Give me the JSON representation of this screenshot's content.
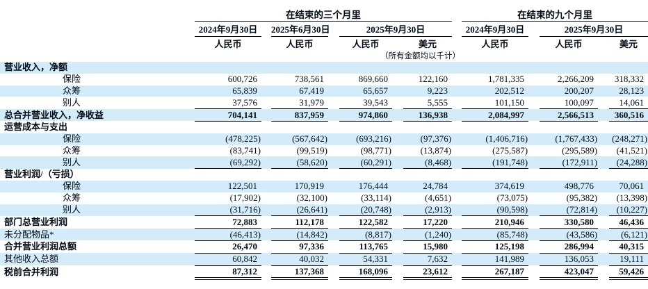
{
  "table": {
    "period_groups": [
      {
        "label": "在结束的三个月里"
      },
      {
        "label": "在结束的九个月里"
      }
    ],
    "date_headers": [
      "2024年9月30日",
      "2025年6月30日",
      "2025年9月30日",
      "2024年9月30日",
      "2025年9月30日"
    ],
    "currency_headers": [
      "人民币",
      "人民币",
      "人民币",
      "美元",
      "人民币",
      "人民币",
      "美元"
    ],
    "amounts_note": "（所有金额均以千计）",
    "rows": [
      {
        "label": "营业收入，净额",
        "type": "section",
        "bold": true,
        "indent": false,
        "values": [
          "",
          "",
          "",
          "",
          "",
          "",
          ""
        ]
      },
      {
        "label": "保险",
        "type": "data",
        "bold": false,
        "indent": true,
        "values": [
          "600,726",
          "738,561",
          "869,660",
          "122,160",
          "1,781,335",
          "2,266,209",
          "318,332"
        ]
      },
      {
        "label": "众筹",
        "type": "data",
        "bold": false,
        "indent": true,
        "values": [
          "65,839",
          "67,419",
          "65,657",
          "9,223",
          "202,512",
          "200,207",
          "28,123"
        ]
      },
      {
        "label": "别人",
        "type": "data",
        "bold": false,
        "indent": true,
        "values": [
          "37,576",
          "31,979",
          "39,543",
          "5,555",
          "101,150",
          "100,097",
          "14,061"
        ]
      },
      {
        "label": "总合并营业收入，净收益",
        "type": "total",
        "bold": true,
        "indent": false,
        "line_top": true,
        "line_bottom": "single",
        "values": [
          "704,141",
          "837,959",
          "974,860",
          "136,938",
          "2,084,997",
          "2,566,513",
          "360,516"
        ]
      },
      {
        "label": "运营成本与支出",
        "type": "section",
        "bold": true,
        "indent": false,
        "values": [
          "",
          "",
          "",
          "",
          "",
          "",
          ""
        ]
      },
      {
        "label": "保险",
        "type": "data",
        "bold": false,
        "indent": true,
        "values": [
          "(478,225)",
          "(567,642)",
          "(693,216)",
          "(97,376)",
          "(1,406,716)",
          "(1,767,433)",
          "(248,271)"
        ]
      },
      {
        "label": "众筹",
        "type": "data",
        "bold": false,
        "indent": true,
        "values": [
          "(83,741)",
          "(99,519)",
          "(98,771)",
          "(13,874)",
          "(275,587)",
          "(295,589)",
          "(41,521)"
        ]
      },
      {
        "label": "别人",
        "type": "data",
        "bold": false,
        "indent": true,
        "line_bottom": "single",
        "values": [
          "(69,292)",
          "(58,620)",
          "(60,291)",
          "(8,468)",
          "(191,748)",
          "(172,911)",
          "(24,288)"
        ]
      },
      {
        "label": "营业利润/（亏损）",
        "type": "section",
        "bold": true,
        "indent": false,
        "values": [
          "",
          "",
          "",
          "",
          "",
          "",
          ""
        ]
      },
      {
        "label": "保险",
        "type": "data",
        "bold": false,
        "indent": true,
        "values": [
          "122,501",
          "170,919",
          "176,444",
          "24,784",
          "374,619",
          "498,776",
          "70,061"
        ]
      },
      {
        "label": "众筹",
        "type": "data",
        "bold": false,
        "indent": true,
        "values": [
          "(17,902)",
          "(32,100)",
          "(33,114)",
          "(4,651)",
          "(73,075)",
          "(95,382)",
          "(13,398)"
        ]
      },
      {
        "label": "别人",
        "type": "data",
        "bold": false,
        "indent": true,
        "values": [
          "(31,716)",
          "(26,641)",
          "(20,748)",
          "(2,913)",
          "(90,598)",
          "(72,814)",
          "(10,227)"
        ]
      },
      {
        "label": "部门总营业利润",
        "type": "total",
        "bold": true,
        "indent": false,
        "line_top": true,
        "line_bottom": "single",
        "values": [
          "72,883",
          "112,178",
          "122,582",
          "17,220",
          "210,946",
          "330,580",
          "46,436"
        ]
      },
      {
        "label": "未分配物品*",
        "type": "data",
        "bold": false,
        "indent": false,
        "line_bottom": "single",
        "values": [
          "(46,413)",
          "(14,842)",
          "(8,817)",
          "(1,240)",
          "(85,748)",
          "(43,586)",
          "(6,121)"
        ]
      },
      {
        "label": "合并营业利润总额",
        "type": "total",
        "bold": true,
        "indent": false,
        "line_bottom": "single",
        "values": [
          "26,470",
          "97,336",
          "113,765",
          "15,980",
          "125,198",
          "286,994",
          "40,315"
        ]
      },
      {
        "label": "其他收入总额",
        "type": "data",
        "bold": false,
        "indent": false,
        "line_bottom": "single",
        "values": [
          "60,842",
          "40,032",
          "54,331",
          "7,632",
          "141,989",
          "136,053",
          "19,111"
        ]
      },
      {
        "label": "税前合并利润",
        "type": "total",
        "bold": true,
        "indent": false,
        "line_top": true,
        "line_bottom": "double",
        "values": [
          "87,312",
          "137,368",
          "168,096",
          "23,612",
          "267,187",
          "423,047",
          "59,426"
        ]
      }
    ]
  },
  "colors": {
    "stripe": "#d4ecf9",
    "text": "#000a14",
    "line": "#000000"
  }
}
